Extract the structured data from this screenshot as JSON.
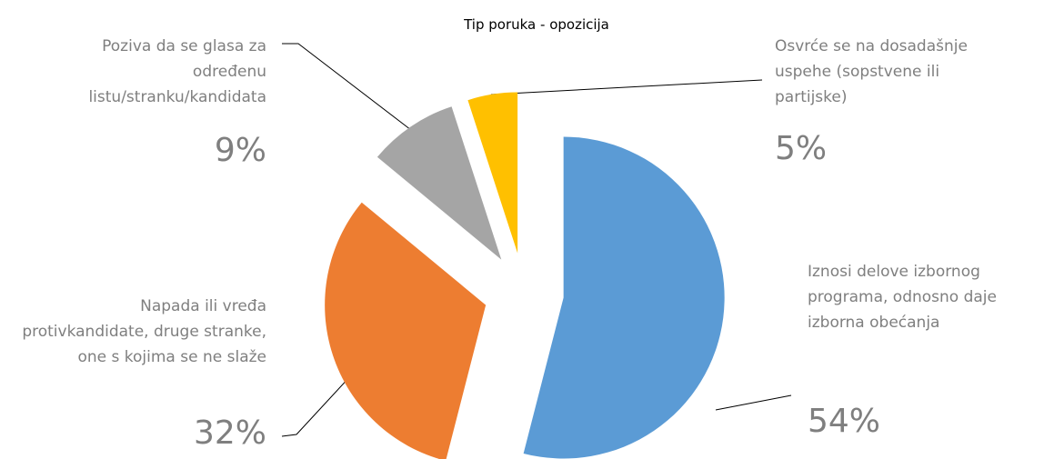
{
  "chart_data": {
    "type": "pie",
    "title": "Tip poruka - opozicija",
    "categories": [
      "Iznosi delove izbornog programa, odnosno daje izborna obećanja",
      "Napada ili vređa protivkandidate, druge stranke, one s kojima se ne slaže",
      "Poziva da se glasa za određenu listu/stranku/kandidata",
      "Osvrće se na dosadašnje uspehe (sopstvene ili partijske)"
    ],
    "values": [
      54,
      32,
      9,
      5
    ],
    "value_labels": [
      "54%",
      "32%",
      "9%",
      "5%"
    ],
    "colors": [
      "#5b9bd5",
      "#ed7d31",
      "#a5a5a5",
      "#ffc000"
    ]
  }
}
